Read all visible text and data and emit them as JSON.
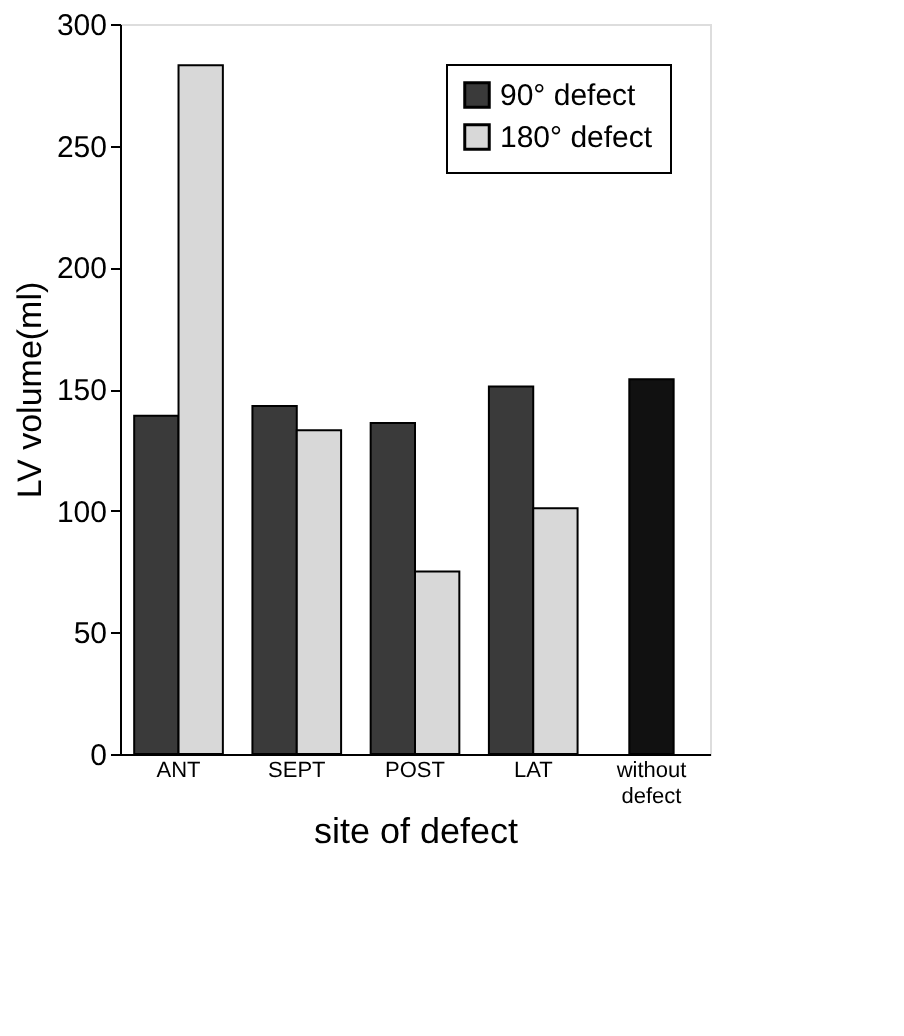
{
  "chart_data": {
    "type": "bar",
    "xlabel": "site of defect",
    "ylabel": "LV volume(ml)",
    "categories": [
      "ANT",
      "SEPT",
      "POST",
      "LAT",
      "without\ndefect"
    ],
    "series": [
      {
        "name": "90° defect",
        "color": "#3a3a3a",
        "values": [
          139,
          143,
          136,
          151,
          null
        ]
      },
      {
        "name": "180° defect",
        "color": "#d8d8d8",
        "values": [
          283,
          133,
          75,
          101,
          null
        ]
      },
      {
        "color": "#111111",
        "values": [
          null,
          null,
          null,
          null,
          154
        ]
      }
    ],
    "ylim": [
      0,
      300
    ],
    "yticks": [
      0,
      50,
      100,
      150,
      200,
      250,
      300
    ],
    "grid": false,
    "legend": "top right"
  }
}
